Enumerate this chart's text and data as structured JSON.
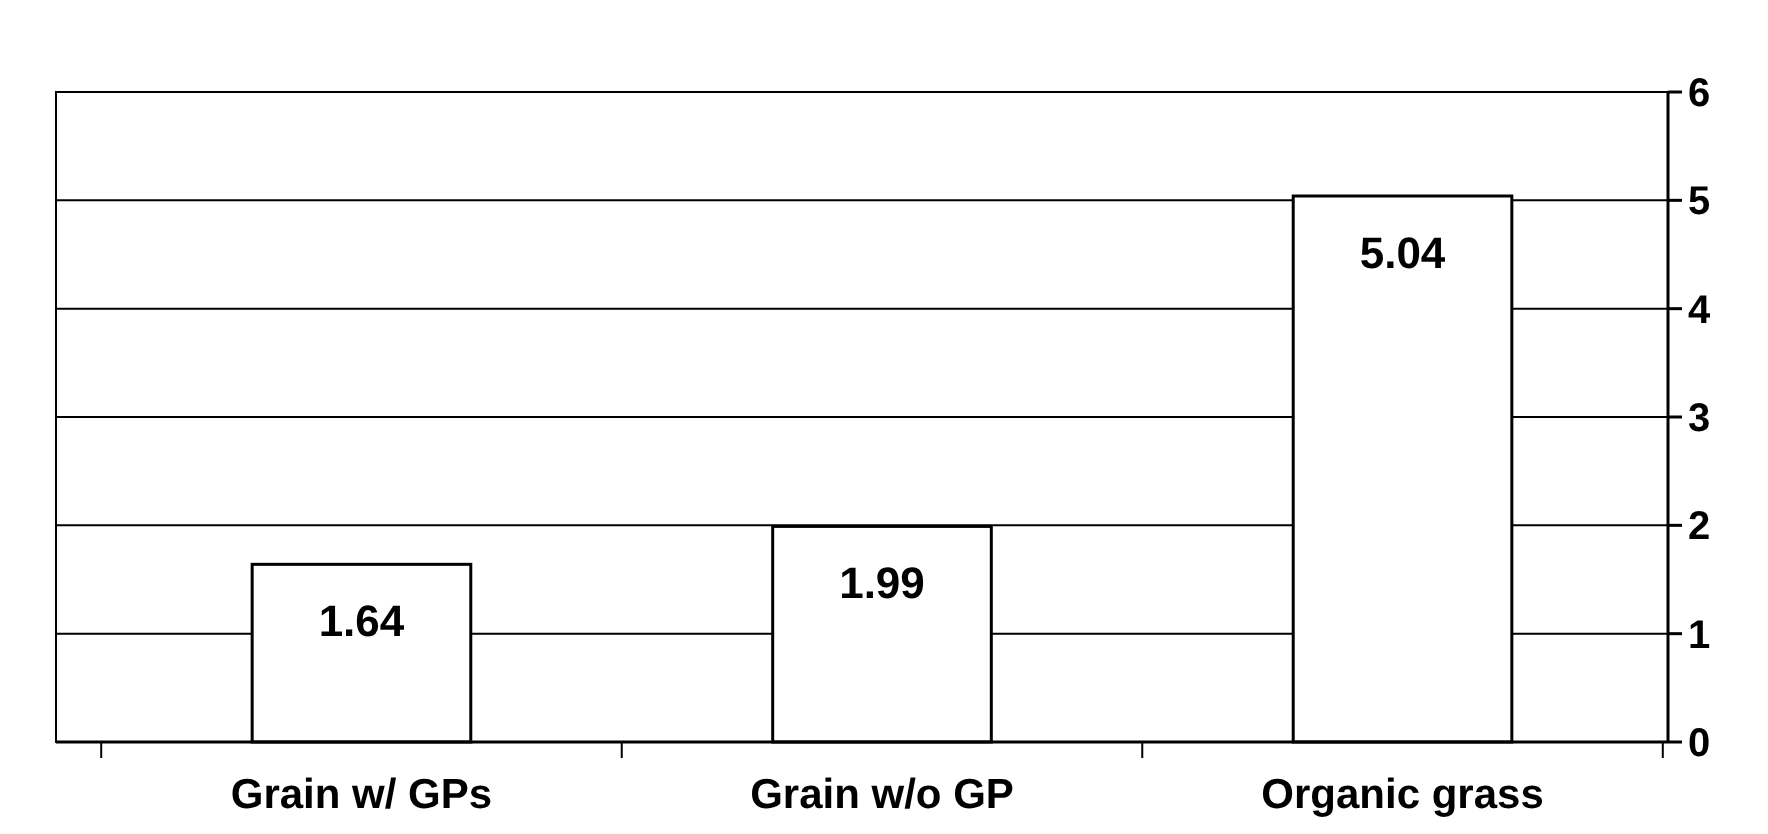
{
  "chart_data": {
    "type": "bar",
    "categories": [
      "Grain w/ GPs",
      "Grain w/o GP",
      "Organic grass"
    ],
    "values": [
      1.64,
      1.99,
      5.04
    ],
    "color": "#ffffff",
    "ylim": [
      0,
      6
    ],
    "yticks": [
      0,
      1,
      2,
      3,
      4,
      5,
      6
    ],
    "grid": "y",
    "data_labels": true
  }
}
